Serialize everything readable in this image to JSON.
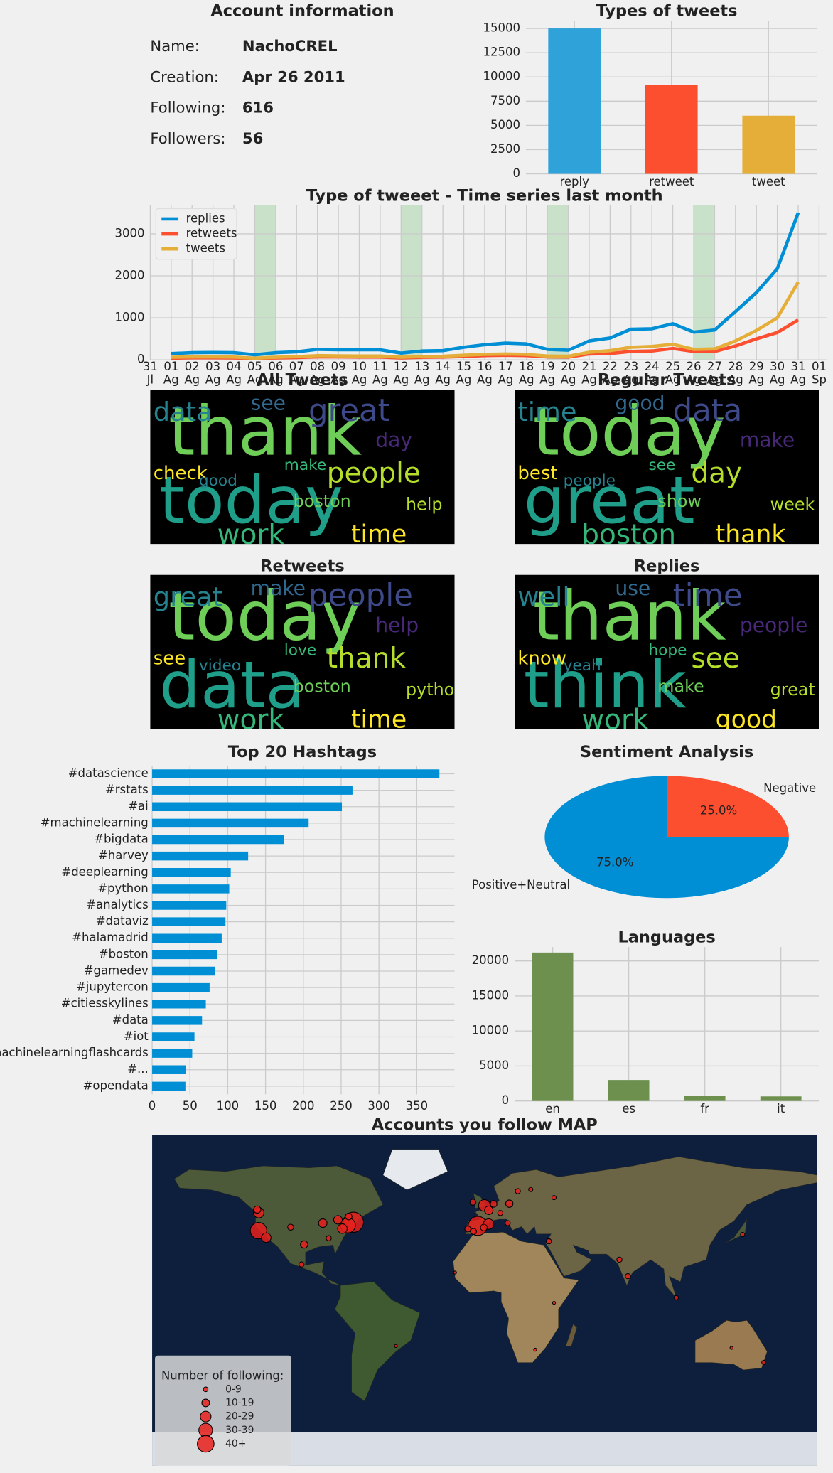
{
  "account": {
    "title": "Account information",
    "rows": [
      {
        "label": "Name:",
        "value": "NachoCREL"
      },
      {
        "label": "Creation:",
        "value": "Apr 26 2011"
      },
      {
        "label": "Following:",
        "value": "616"
      },
      {
        "label": "Followers:",
        "value": "56"
      }
    ]
  },
  "chart_data": [
    {
      "type": "bar",
      "title": "Types of tweets",
      "categories": [
        "reply",
        "retweet",
        "tweet"
      ],
      "values": [
        15000,
        9200,
        6000
      ],
      "colors": [
        "#30a2da",
        "#fc4f30",
        "#e5ae38"
      ],
      "ylim": [
        0,
        15800
      ],
      "yticks": [
        0,
        2500,
        5000,
        7500,
        10000,
        12500,
        15000
      ],
      "grid": true
    },
    {
      "type": "line",
      "title": "Type of tweeet - Time series last month",
      "x": [
        1,
        2,
        3,
        4,
        5,
        6,
        7,
        8,
        9,
        10,
        11,
        12,
        13,
        14,
        15,
        16,
        17,
        18,
        19,
        20,
        21,
        22,
        23,
        24,
        25,
        26,
        27,
        28,
        29,
        30,
        31
      ],
      "series": [
        {
          "name": "replies",
          "color": "#008fd5",
          "values": [
            150,
            170,
            175,
            170,
            120,
            170,
            190,
            250,
            240,
            240,
            240,
            160,
            210,
            220,
            300,
            360,
            400,
            380,
            250,
            230,
            450,
            520,
            730,
            740,
            860,
            660,
            710,
            1150,
            1600,
            2170,
            3500
          ]
        },
        {
          "name": "retweets",
          "color": "#fc4f30",
          "values": [
            40,
            50,
            50,
            45,
            30,
            45,
            55,
            70,
            70,
            65,
            65,
            45,
            60,
            65,
            80,
            100,
            110,
            100,
            70,
            65,
            140,
            150,
            200,
            210,
            270,
            200,
            200,
            330,
            500,
            650,
            950
          ]
        },
        {
          "name": "tweets",
          "color": "#e5ae38",
          "values": [
            60,
            70,
            70,
            65,
            40,
            60,
            75,
            100,
            95,
            90,
            90,
            60,
            80,
            85,
            110,
            130,
            140,
            130,
            90,
            85,
            180,
            220,
            300,
            320,
            370,
            250,
            260,
            450,
            700,
            1000,
            1850
          ]
        }
      ],
      "shaded_spans": [
        [
          5,
          6
        ],
        [
          12,
          13
        ],
        [
          19,
          20
        ],
        [
          26,
          27
        ]
      ],
      "shade_color": "#a8d5a8",
      "xlim": [
        0,
        32.35
      ],
      "ylim": [
        0,
        3690
      ],
      "xticks": [
        {
          "value": 0,
          "label": "31"
        },
        {
          "value": 1,
          "label": "01"
        },
        {
          "value": 2,
          "label": "02"
        },
        {
          "value": 3,
          "label": "03"
        },
        {
          "value": 4,
          "label": "04"
        },
        {
          "value": 5,
          "label": "05"
        },
        {
          "value": 6,
          "label": "06"
        },
        {
          "value": 7,
          "label": "07"
        },
        {
          "value": 8,
          "label": "08"
        },
        {
          "value": 9,
          "label": "09"
        },
        {
          "value": 10,
          "label": "10"
        },
        {
          "value": 11,
          "label": "11"
        },
        {
          "value": 12,
          "label": "12"
        },
        {
          "value": 13,
          "label": "13"
        },
        {
          "value": 14,
          "label": "14"
        },
        {
          "value": 15,
          "label": "15"
        },
        {
          "value": 16,
          "label": "16"
        },
        {
          "value": 17,
          "label": "17"
        },
        {
          "value": 18,
          "label": "18"
        },
        {
          "value": 19,
          "label": "19"
        },
        {
          "value": 20,
          "label": "20"
        },
        {
          "value": 21,
          "label": "21"
        },
        {
          "value": 22,
          "label": "22"
        },
        {
          "value": 23,
          "label": "23"
        },
        {
          "value": 24,
          "label": "24"
        },
        {
          "value": 25,
          "label": "25"
        },
        {
          "value": 26,
          "label": "26"
        },
        {
          "value": 27,
          "label": "27"
        },
        {
          "value": 28,
          "label": "28"
        },
        {
          "value": 29,
          "label": "29"
        },
        {
          "value": 30,
          "label": "30"
        },
        {
          "value": 31,
          "label": "31"
        },
        {
          "value": 32,
          "label": "01"
        }
      ],
      "xtick_sublabels": [
        "Jl",
        "Ag",
        "Ag",
        "Ag",
        "Ag",
        "Ag",
        "Ag",
        "Ag",
        "Ag",
        "Ag",
        "Ag",
        "Ag",
        "Ag",
        "Ag",
        "Ag",
        "Ag",
        "Ag",
        "Ag",
        "Ag",
        "Ag",
        "Ag",
        "Ag",
        "Ag",
        "Ag",
        "Ag",
        "Ag",
        "Ag",
        "Ag",
        "Ag",
        "Ag",
        "Ag",
        "Ag",
        "Sp"
      ],
      "yticks": [
        0,
        1000,
        2000,
        3000
      ],
      "grid": true,
      "legend": "upper left"
    },
    {
      "type": "wordcloud",
      "title": "All Tweets",
      "words": [
        "thank",
        "today",
        "great",
        "data",
        "people",
        "work",
        "time",
        "see",
        "day",
        "check",
        "boston",
        "help",
        "good",
        "make"
      ]
    },
    {
      "type": "wordcloud",
      "title": "Regular Tweets",
      "words": [
        "today",
        "great",
        "data",
        "time",
        "day",
        "boston",
        "thank",
        "good",
        "make",
        "best",
        "show",
        "week",
        "people",
        "see"
      ]
    },
    {
      "type": "wordcloud",
      "title": "Retweets",
      "words": [
        "today",
        "data",
        "people",
        "great",
        "thank",
        "work",
        "time",
        "make",
        "help",
        "see",
        "boston",
        "python",
        "video",
        "love"
      ]
    },
    {
      "type": "wordcloud",
      "title": "Replies",
      "words": [
        "thank",
        "think",
        "time",
        "well",
        "see",
        "work",
        "good",
        "use",
        "people",
        "know",
        "make",
        "great",
        "yeah",
        "hope"
      ]
    },
    {
      "type": "hbar",
      "title": "Top 20 Hashtags",
      "categories": [
        "#datascience",
        "#rstats",
        "#ai",
        "#machinelearning",
        "#bigdata",
        "#harvey",
        "#deeplearning",
        "#python",
        "#analytics",
        "#dataviz",
        "#halamadrid",
        "#boston",
        "#gamedev",
        "#jupytercon",
        "#citiesskylines",
        "#data",
        "#iot",
        "#machinelearningflashcards",
        "#...",
        "#opendata"
      ],
      "values": [
        380,
        265,
        251,
        207,
        174,
        127,
        104,
        102,
        98,
        97,
        92,
        86,
        83,
        76,
        71,
        66,
        56,
        53,
        45,
        44
      ],
      "color": "#008fd5",
      "xlim": [
        0,
        400
      ],
      "xticks": [
        0,
        50,
        100,
        150,
        200,
        250,
        300,
        350
      ],
      "grid": true
    },
    {
      "type": "pie",
      "title": "Sentiment Analysis",
      "labels": [
        "Negative",
        "Positive+Neutral"
      ],
      "values": [
        25,
        75
      ],
      "value_labels": [
        "25.0%",
        "75.0%"
      ],
      "colors": [
        "#fc4f30",
        "#008fd5"
      ]
    },
    {
      "type": "bar",
      "title": "Languages",
      "categories": [
        "en",
        "es",
        "fr",
        "it"
      ],
      "values": [
        21200,
        3000,
        700,
        650
      ],
      "color": "#6d904f",
      "ylim": [
        0,
        22000
      ],
      "yticks": [
        0,
        5000,
        10000,
        15000,
        20000
      ],
      "grid": true
    },
    {
      "type": "map",
      "title": "Accounts you follow MAP",
      "legend_title": "Number of following:",
      "legend_labels": [
        "0-9",
        "10-19",
        "20-29",
        "30-39",
        "40+"
      ],
      "color": "#e8201c",
      "lon": [
        -71,
        -3.7,
        -122.4,
        -74,
        -122.3,
        -118.2,
        -87.6,
        -97.7,
        -79.4,
        -105,
        -84.4,
        -77,
        -73.6,
        -123.1,
        -99.1,
        -0.1,
        2.3,
        2.2,
        13.4,
        4.9,
        -6.3,
        18,
        -9.1,
        -0.4,
        -6,
        12.5,
        8.5,
        25,
        37.6,
        34.8,
        73,
        77.6,
        103.8,
        139.7,
        151.2,
        133.7,
        37.6,
        27.4,
        -48,
        -16
      ],
      "lat": [
        42.4,
        40.4,
        37.8,
        40.7,
        47.6,
        34,
        41.9,
        30.3,
        43.7,
        39.7,
        33.7,
        38.9,
        45.5,
        49.3,
        19.4,
        51.5,
        48.9,
        41.4,
        52.5,
        52.4,
        53.3,
        59.3,
        38.7,
        39.5,
        37.4,
        41.9,
        47.4,
        60.2,
        55.8,
        32,
        22,
        13,
        1.3,
        35.7,
        -33.9,
        -26,
        -1.5,
        -27,
        -25,
        15
      ],
      "count": [
        45,
        40,
        30,
        25,
        12,
        10,
        8,
        6,
        8,
        4,
        3,
        10,
        5,
        6,
        3,
        15,
        8,
        12,
        6,
        5,
        4,
        3,
        4,
        5,
        4,
        3,
        3,
        2,
        2,
        3,
        3,
        3,
        2,
        2,
        2,
        1,
        1,
        1,
        1,
        1
      ]
    }
  ]
}
